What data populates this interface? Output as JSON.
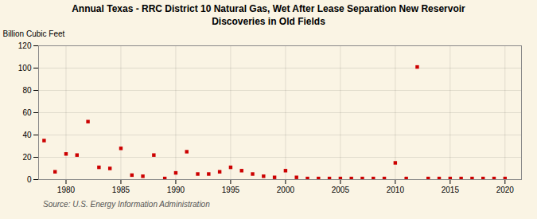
{
  "chart_data": {
    "type": "scatter",
    "title": "Annual Texas - RRC District 10 Natural Gas, Wet After Lease Separation New Reservoir\nDiscoveries in Old Fields",
    "ylabel": "Billion Cubic Feet",
    "source": "Source: U.S. Energy Information Administration",
    "x": [
      1978,
      1979,
      1980,
      1981,
      1982,
      1983,
      1984,
      1985,
      1986,
      1987,
      1988,
      1989,
      1990,
      1991,
      1992,
      1993,
      1994,
      1995,
      1996,
      1997,
      1998,
      1999,
      2000,
      2001,
      2002,
      2003,
      2004,
      2005,
      2006,
      2007,
      2008,
      2009,
      2010,
      2011,
      2012,
      2013,
      2014,
      2015,
      2016,
      2017,
      2018,
      2019,
      2020
    ],
    "values": [
      35,
      7,
      23,
      22,
      52,
      11,
      10,
      28,
      4,
      3,
      22,
      1,
      6,
      25,
      5,
      5,
      7,
      11,
      8,
      5,
      3,
      2,
      8,
      2,
      1,
      1,
      1,
      1,
      1,
      1,
      1,
      1,
      15,
      1,
      101,
      1,
      1,
      1,
      1,
      1,
      1,
      1,
      1
    ],
    "color": "#cc0000",
    "marker": "square",
    "xlim": [
      1977.5,
      2021.5
    ],
    "ylim": [
      0,
      120
    ],
    "xticks": [
      1980,
      1985,
      1990,
      1995,
      2000,
      2005,
      2010,
      2015,
      2020
    ],
    "yticks": [
      0,
      20,
      40,
      60,
      80,
      100,
      120
    ],
    "grid": true
  }
}
